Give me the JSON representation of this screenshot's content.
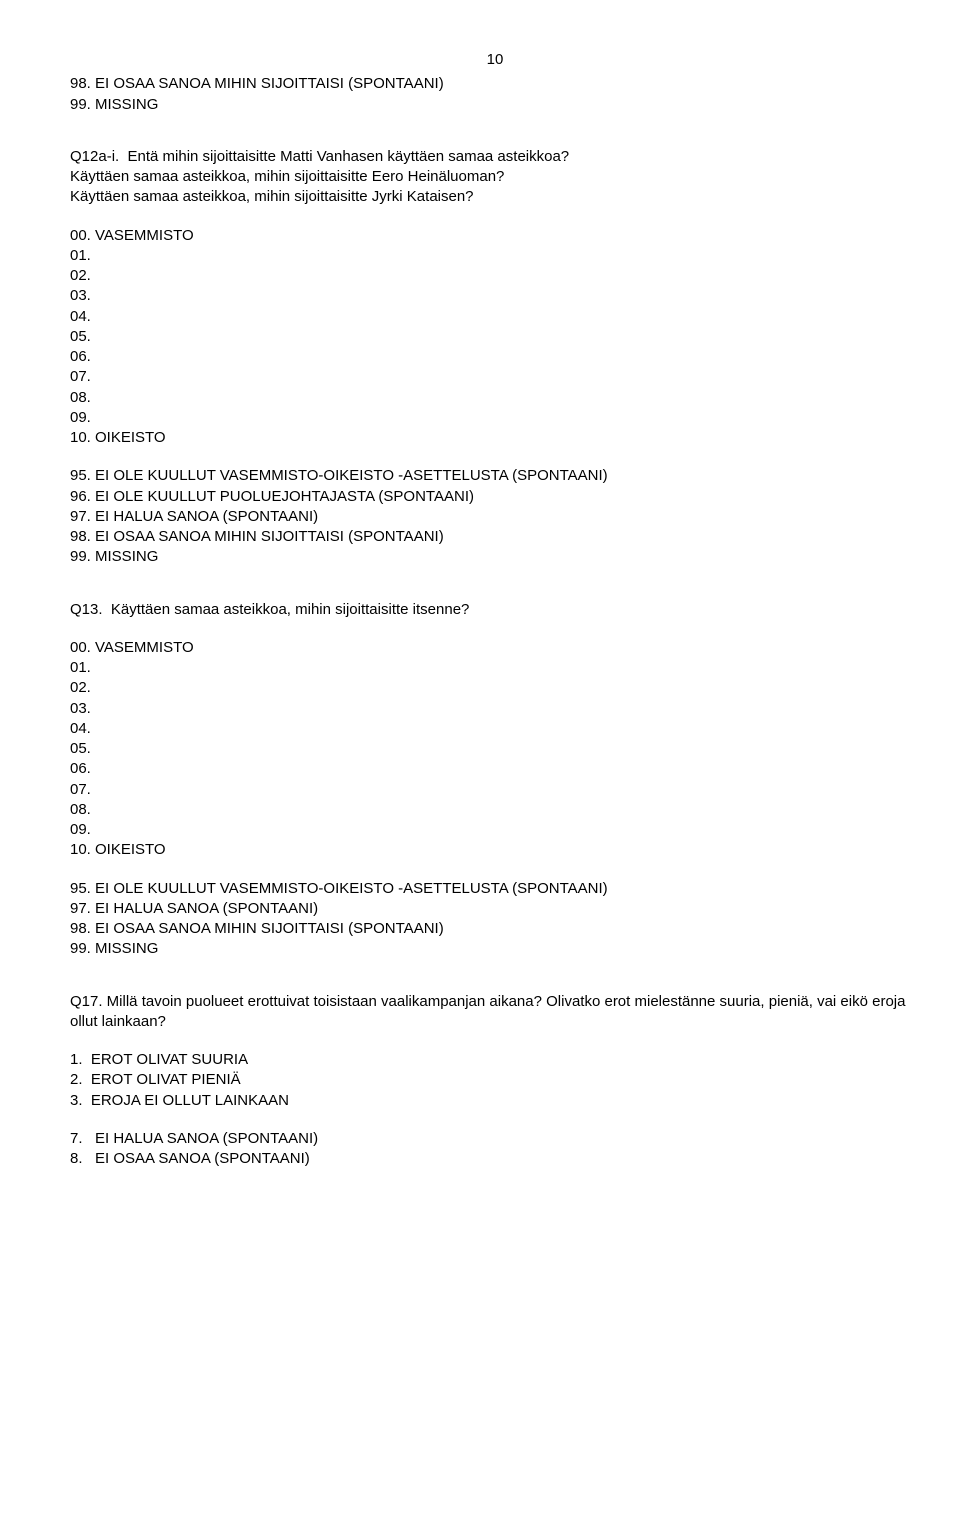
{
  "pageNumber": "10",
  "block1": {
    "l1": "98. EI OSAA SANOA MIHIN SIJOITTAISI (SPONTAANI)",
    "l2": "99. MISSING"
  },
  "block2": {
    "l1": "Q12a-i.  Entä mihin sijoittaisitte Matti Vanhasen käyttäen samaa asteikkoa?",
    "l2": "Käyttäen samaa asteikkoa, mihin sijoittaisitte Eero Heinäluoman?",
    "l3": "Käyttäen samaa asteikkoa, mihin sijoittaisitte Jyrki Kataisen?"
  },
  "block3": {
    "l1": "00. VASEMMISTO",
    "l2": "01.",
    "l3": "02.",
    "l4": "03.",
    "l5": "04.",
    "l6": "05.",
    "l7": "06.",
    "l8": "07.",
    "l9": "08.",
    "l10": "09.",
    "l11": "10. OIKEISTO"
  },
  "block4": {
    "l1": "95. EI OLE KUULLUT VASEMMISTO-OIKEISTO -ASETTELUSTA (SPONTAANI)",
    "l2": "96. EI OLE KUULLUT PUOLUEJOHTAJASTA (SPONTAANI)",
    "l3": "97. EI HALUA SANOA (SPONTAANI)",
    "l4": "98. EI OSAA SANOA MIHIN SIJOITTAISI (SPONTAANI)",
    "l5": "99. MISSING"
  },
  "block5": {
    "l1": "Q13.  Käyttäen samaa asteikkoa, mihin sijoittaisitte itsenne?"
  },
  "block6": {
    "l1": "00. VASEMMISTO",
    "l2": "01.",
    "l3": "02.",
    "l4": "03.",
    "l5": "04.",
    "l6": "05.",
    "l7": "06.",
    "l8": "07.",
    "l9": "08.",
    "l10": "09.",
    "l11": "10. OIKEISTO"
  },
  "block7": {
    "l1": "95. EI OLE KUULLUT VASEMMISTO-OIKEISTO -ASETTELUSTA (SPONTAANI)",
    "l2": "97. EI HALUA SANOA (SPONTAANI)",
    "l3": "98. EI OSAA SANOA MIHIN SIJOITTAISI (SPONTAANI)",
    "l4": "99. MISSING"
  },
  "block8": {
    "l1": "Q17. Millä tavoin puolueet erottuivat toisistaan vaalikampanjan aikana? Olivatko erot mielestänne suuria, pieniä, vai eikö eroja ollut lainkaan?"
  },
  "block9": {
    "l1": "1.  EROT OLIVAT SUURIA",
    "l2": "2.  EROT OLIVAT PIENIÄ",
    "l3": "3.  EROJA EI OLLUT LAINKAAN"
  },
  "block10": {
    "l1": "7.   EI HALUA SANOA (SPONTAANI)",
    "l2": "8.   EI OSAA SANOA (SPONTAANI)"
  }
}
